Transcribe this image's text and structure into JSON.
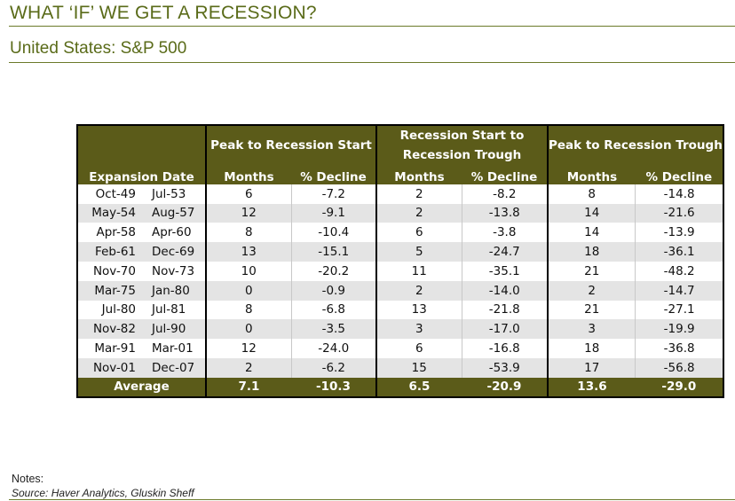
{
  "header": {
    "title": "WHAT ‘IF’ WE GET A RECESSION?",
    "subtitle": "United States: S&P 500"
  },
  "table": {
    "group_headers": {
      "expansion": "",
      "peak_to_start": "Peak to Recession Start",
      "start_to_trough_line1": "Recession Start to",
      "start_to_trough_line2": "Recession Trough",
      "peak_to_trough": "Peak to Recession Trough"
    },
    "sub_headers": {
      "expansion_date": "Expansion Date",
      "months": "Months",
      "decline": "% Decline"
    },
    "rows": [
      {
        "start": "Oct-49",
        "end": "Jul-53",
        "pts_m": "6",
        "pts_d": "-7.2",
        "stt_m": "2",
        "stt_d": "-8.2",
        "ptt_m": "8",
        "ptt_d": "-14.8"
      },
      {
        "start": "May-54",
        "end": "Aug-57",
        "pts_m": "12",
        "pts_d": "-9.1",
        "stt_m": "2",
        "stt_d": "-13.8",
        "ptt_m": "14",
        "ptt_d": "-21.6"
      },
      {
        "start": "Apr-58",
        "end": "Apr-60",
        "pts_m": "8",
        "pts_d": "-10.4",
        "stt_m": "6",
        "stt_d": "-3.8",
        "ptt_m": "14",
        "ptt_d": "-13.9"
      },
      {
        "start": "Feb-61",
        "end": "Dec-69",
        "pts_m": "13",
        "pts_d": "-15.1",
        "stt_m": "5",
        "stt_d": "-24.7",
        "ptt_m": "18",
        "ptt_d": "-36.1"
      },
      {
        "start": "Nov-70",
        "end": "Nov-73",
        "pts_m": "10",
        "pts_d": "-20.2",
        "stt_m": "11",
        "stt_d": "-35.1",
        "ptt_m": "21",
        "ptt_d": "-48.2"
      },
      {
        "start": "Mar-75",
        "end": "Jan-80",
        "pts_m": "0",
        "pts_d": "-0.9",
        "stt_m": "2",
        "stt_d": "-14.0",
        "ptt_m": "2",
        "ptt_d": "-14.7"
      },
      {
        "start": "Jul-80",
        "end": "Jul-81",
        "pts_m": "8",
        "pts_d": "-6.8",
        "stt_m": "13",
        "stt_d": "-21.8",
        "ptt_m": "21",
        "ptt_d": "-27.1"
      },
      {
        "start": "Nov-82",
        "end": "Jul-90",
        "pts_m": "0",
        "pts_d": "-3.5",
        "stt_m": "3",
        "stt_d": "-17.0",
        "ptt_m": "3",
        "ptt_d": "-19.9"
      },
      {
        "start": "Mar-91",
        "end": "Mar-01",
        "pts_m": "12",
        "pts_d": "-24.0",
        "stt_m": "6",
        "stt_d": "-16.8",
        "ptt_m": "18",
        "ptt_d": "-36.8"
      },
      {
        "start": "Nov-01",
        "end": "Dec-07",
        "pts_m": "2",
        "pts_d": "-6.2",
        "stt_m": "15",
        "stt_d": "-53.9",
        "ptt_m": "17",
        "ptt_d": "-56.8"
      }
    ],
    "average": {
      "label": "Average",
      "pts_m": "7.1",
      "pts_d": "-10.3",
      "stt_m": "6.5",
      "stt_d": "-20.9",
      "ptt_m": "13.6",
      "ptt_d": "-29.0"
    }
  },
  "footer": {
    "notes": "Notes:",
    "source": "Source: Haver Analytics, Gluskin Sheff"
  },
  "colors": {
    "accent_olive": "#5b5b19",
    "title_green": "#5a6b19",
    "row_shade": "#e4e4e4"
  }
}
